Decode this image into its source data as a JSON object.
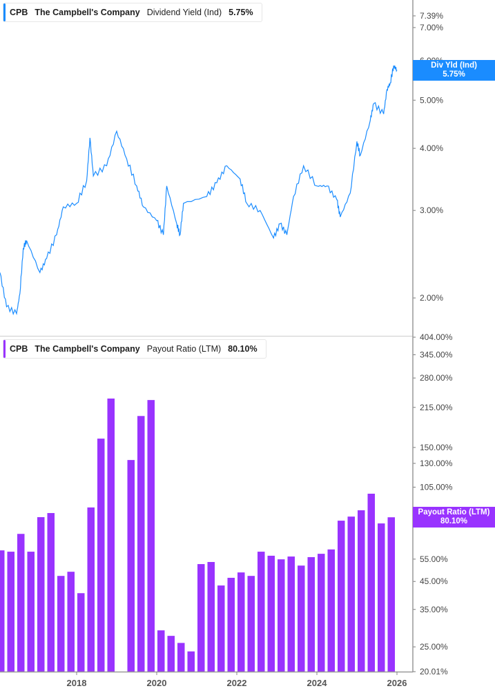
{
  "colors": {
    "yield": "#1a8cff",
    "payout": "#9933ff",
    "axis": "#999999"
  },
  "chart_data": [
    {
      "type": "line",
      "title": "CPB The Campbell's Company Dividend Yield (Ind) 5.75%",
      "legend": {
        "ticker": "CPB",
        "company": "The Campbell's Company",
        "metric": "Dividend Yield (Ind)",
        "value": "5.75%"
      },
      "last_label": {
        "name": "Div Yld (Ind)",
        "value": "5.75%"
      },
      "y_scale": "log",
      "ylim": [
        1.68,
        7.6
      ],
      "y_ticks": [
        {
          "v": 7.39,
          "label": "7.39%"
        },
        {
          "v": 7,
          "label": "7.00%"
        },
        {
          "v": 6,
          "label": "6.00%"
        },
        {
          "v": 5,
          "label": "5.00%"
        },
        {
          "v": 4,
          "label": "4.00%"
        },
        {
          "v": 3,
          "label": "3.00%"
        },
        {
          "v": 2,
          "label": "2.00%"
        }
      ],
      "series": [
        {
          "points": [
            [
              "2016-02",
              2.25
            ],
            [
              "2016-04",
              1.92
            ],
            [
              "2016-07",
              1.86
            ],
            [
              "2016-08",
              2.04
            ],
            [
              "2016-09",
              2.52
            ],
            [
              "2016-10",
              2.61
            ],
            [
              "2017-02",
              2.25
            ],
            [
              "2017-04",
              2.4
            ],
            [
              "2017-07",
              2.68
            ],
            [
              "2017-09",
              3.05
            ],
            [
              "2018-01",
              3.1
            ],
            [
              "2018-04",
              3.44
            ],
            [
              "2018-05",
              4.2
            ],
            [
              "2018-06",
              3.52
            ],
            [
              "2018-10",
              3.69
            ],
            [
              "2019-01",
              4.33
            ],
            [
              "2019-04",
              3.81
            ],
            [
              "2019-07",
              3.36
            ],
            [
              "2019-09",
              3.05
            ],
            [
              "2020-01",
              2.86
            ],
            [
              "2020-03",
              2.68
            ],
            [
              "2020-04",
              3.36
            ],
            [
              "2020-07",
              2.82
            ],
            [
              "2020-08",
              2.68
            ],
            [
              "2020-09",
              3.1
            ],
            [
              "2021-04",
              3.2
            ],
            [
              "2021-07",
              3.41
            ],
            [
              "2021-10",
              3.69
            ],
            [
              "2022-02",
              3.47
            ],
            [
              "2022-04",
              3.1
            ],
            [
              "2022-08",
              3.0
            ],
            [
              "2022-12",
              2.64
            ],
            [
              "2023-02",
              2.82
            ],
            [
              "2023-04",
              2.68
            ],
            [
              "2023-06",
              3.2
            ],
            [
              "2023-09",
              3.69
            ],
            [
              "2024-01",
              3.36
            ],
            [
              "2024-04",
              3.36
            ],
            [
              "2024-07",
              3.15
            ],
            [
              "2024-08",
              2.91
            ],
            [
              "2024-11",
              3.25
            ],
            [
              "2025-01",
              4.13
            ],
            [
              "2025-02",
              3.87
            ],
            [
              "2025-05",
              4.55
            ],
            [
              "2025-06",
              4.92
            ],
            [
              "2025-09",
              4.69
            ],
            [
              "2025-10",
              5.25
            ],
            [
              "2025-11",
              5.42
            ],
            [
              "2025-12",
              5.87
            ],
            [
              "2026-01",
              5.75
            ]
          ]
        }
      ]
    },
    {
      "type": "bar",
      "title": "CPB The Campbell's Company Payout Ratio (LTM) 80.10%",
      "legend": {
        "ticker": "CPB",
        "company": "The Campbell's Company",
        "metric": "Payout Ratio (LTM)",
        "value": "80.10%"
      },
      "last_label": {
        "name": "Payout Ratio (LTM)",
        "value": "80.10%"
      },
      "y_scale": "log",
      "ylim": [
        20.01,
        404
      ],
      "y_ticks": [
        {
          "v": 404,
          "label": "404.00%"
        },
        {
          "v": 345,
          "label": "345.00%"
        },
        {
          "v": 280,
          "label": "280.00%"
        },
        {
          "v": 215,
          "label": "215.00%"
        },
        {
          "v": 150,
          "label": "150.00%"
        },
        {
          "v": 130,
          "label": "130.00%"
        },
        {
          "v": 105,
          "label": "105.00%"
        },
        {
          "v": 55,
          "label": "55.00%"
        },
        {
          "v": 45,
          "label": "45.00%"
        },
        {
          "v": 35,
          "label": "35.00%"
        },
        {
          "v": 25,
          "label": "25.00%"
        },
        {
          "v": 20.01,
          "label": "20.01%"
        }
      ],
      "x_ticks": [
        "2018",
        "2020",
        "2022",
        "2024",
        "2026"
      ],
      "categories": [
        "2016-01",
        "2016-04",
        "2016-07",
        "2016-10",
        "2017-01",
        "2017-04",
        "2017-07",
        "2017-10",
        "2018-01",
        "2018-04",
        "2018-07",
        "2018-10",
        "2019-01",
        "2019-04",
        "2019-07",
        "2019-10",
        "2020-01",
        "2020-04",
        "2020-07",
        "2020-10",
        "2021-01",
        "2021-04",
        "2021-07",
        "2021-10",
        "2022-01",
        "2022-04",
        "2022-07",
        "2022-10",
        "2023-01",
        "2023-04",
        "2023-07",
        "2023-10",
        "2024-01",
        "2024-04",
        "2024-07",
        "2024-10",
        "2025-01",
        "2025-04",
        "2025-07",
        "2025-10"
      ],
      "values": [
        59.5,
        58.8,
        69.0,
        58.8,
        80.2,
        83.2,
        47.3,
        49.1,
        40.5,
        87.5,
        162.4,
        232.8,
        null,
        134.0,
        199.0,
        229.7,
        29.0,
        27.6,
        25.9,
        24.0,
        52.6,
        53.6,
        43.4,
        46.5,
        48.8,
        47.3,
        58.8,
        56.7,
        54.9,
        56.3,
        51.9,
        56.0,
        57.7,
        60.0,
        77.7,
        80.6,
        85.3,
        99.0,
        75.8,
        80.1
      ]
    }
  ]
}
